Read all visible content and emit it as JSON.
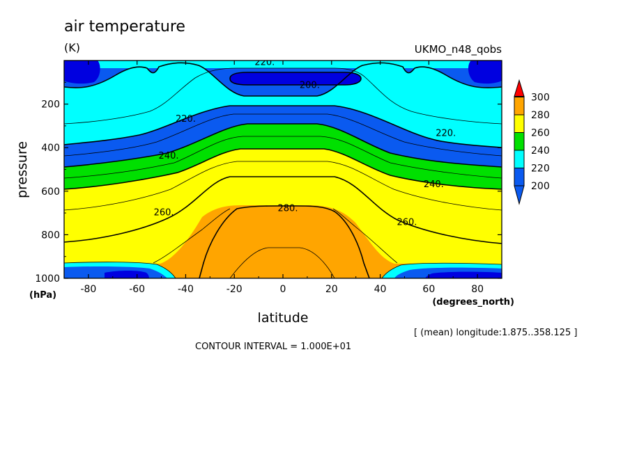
{
  "chart_data": {
    "type": "heatmap",
    "subtype": "filled-contour",
    "title": "air temperature",
    "units": "(K)",
    "dataset": "UKMO_n48_qobs",
    "xlabel": "latitude",
    "xunits": "(degrees_north)",
    "ylabel": "pressure",
    "yunits": "(hPa)",
    "xlim": [
      -90,
      90
    ],
    "ylim": [
      1000,
      0
    ],
    "x_ticks": [
      -80,
      -60,
      -40,
      -20,
      0,
      20,
      40,
      60,
      80
    ],
    "x_tick_labels": [
      "-80",
      "-60",
      "-40",
      "-20",
      "0",
      "20",
      "40",
      "60",
      "80"
    ],
    "y_ticks": [
      200,
      400,
      600,
      800,
      1000
    ],
    "y_tick_labels": [
      "200",
      "400",
      "600",
      "800",
      "1000"
    ],
    "colorbar": {
      "levels": [
        200,
        220,
        240,
        260,
        280,
        300
      ],
      "labels": [
        "200",
        "220",
        "240",
        "260",
        "280",
        "300"
      ],
      "colors": [
        "#0a5af0",
        "#00ffff",
        "#00e000",
        "#ffff00",
        "#ffa500"
      ],
      "under_color": "#0a5af0",
      "over_color": "#ff0000"
    },
    "level_colors": {
      "190": "#0000e0",
      "200": "#0a5af0",
      "220": "#00ffff",
      "240": "#00e000",
      "260": "#ffff00",
      "280": "#ffa500"
    },
    "contour_labels": [
      {
        "text": "220.",
        "lat": -7.5,
        "p": 5
      },
      {
        "text": "200.",
        "lat": 11,
        "p": 110
      },
      {
        "text": "220.",
        "lat": -40,
        "p": 265
      },
      {
        "text": "220.",
        "lat": 67,
        "p": 330
      },
      {
        "text": "240.",
        "lat": -47,
        "p": 435
      },
      {
        "text": "240.",
        "lat": 62,
        "p": 565
      },
      {
        "text": "260.",
        "lat": -49,
        "p": 695
      },
      {
        "text": "260.",
        "lat": 51,
        "p": 740
      },
      {
        "text": "280.",
        "lat": 2,
        "p": 675
      }
    ],
    "footer_note": "[ (mean) longitude:1.875..358.125 ]",
    "contour_interval": "CONTOUR INTERVAL = 1.000E+01"
  }
}
